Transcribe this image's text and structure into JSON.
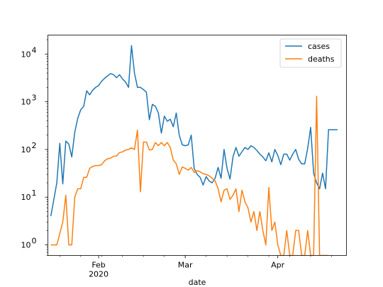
{
  "chart_data": {
    "type": "line",
    "title": "",
    "xlabel": "date",
    "ylabel": "",
    "yscale": "log",
    "ylim": [
      0.6,
      25000
    ],
    "xlim": [
      "2020-01-15",
      "2020-04-24"
    ],
    "grid": false,
    "legend": {
      "position": "top-right",
      "entries": [
        "cases",
        "deaths"
      ]
    },
    "x_ticks": [
      {
        "label": "Feb",
        "date": "2020-02-01",
        "sublabel": "2020"
      },
      {
        "label": "Mar",
        "date": "2020-03-01"
      },
      {
        "label": "Apr",
        "date": "2020-04-01"
      }
    ],
    "y_ticks": [
      {
        "base": "10",
        "exp": "0",
        "value": 1
      },
      {
        "base": "10",
        "exp": "1",
        "value": 10
      },
      {
        "base": "10",
        "exp": "2",
        "value": 100
      },
      {
        "base": "10",
        "exp": "3",
        "value": 1000
      },
      {
        "base": "10",
        "exp": "4",
        "value": 10000
      }
    ],
    "colors": {
      "cases": "#1f77b4",
      "deaths": "#ff7f0e",
      "axis": "#000000"
    },
    "series": [
      {
        "name": "cases",
        "x": [
          "2020-01-16",
          "2020-01-18",
          "2020-01-19",
          "2020-01-20",
          "2020-01-21",
          "2020-01-22",
          "2020-01-23",
          "2020-01-24",
          "2020-01-25",
          "2020-01-26",
          "2020-01-27",
          "2020-01-28",
          "2020-01-29",
          "2020-01-30",
          "2020-01-31",
          "2020-02-01",
          "2020-02-02",
          "2020-02-03",
          "2020-02-04",
          "2020-02-05",
          "2020-02-06",
          "2020-02-07",
          "2020-02-08",
          "2020-02-09",
          "2020-02-10",
          "2020-02-11",
          "2020-02-12",
          "2020-02-13",
          "2020-02-14",
          "2020-02-15",
          "2020-02-16",
          "2020-02-17",
          "2020-02-18",
          "2020-02-19",
          "2020-02-20",
          "2020-02-21",
          "2020-02-22",
          "2020-02-23",
          "2020-02-24",
          "2020-02-25",
          "2020-02-26",
          "2020-02-27",
          "2020-02-28",
          "2020-02-29",
          "2020-03-01",
          "2020-03-02",
          "2020-03-03",
          "2020-03-04",
          "2020-03-05",
          "2020-03-06",
          "2020-03-07",
          "2020-03-08",
          "2020-03-09",
          "2020-03-10",
          "2020-03-11",
          "2020-03-12",
          "2020-03-13",
          "2020-03-14",
          "2020-03-15",
          "2020-03-16",
          "2020-03-17",
          "2020-03-18",
          "2020-03-19",
          "2020-03-20",
          "2020-03-21",
          "2020-03-22",
          "2020-03-23",
          "2020-03-24",
          "2020-03-25",
          "2020-03-26",
          "2020-03-27",
          "2020-03-28",
          "2020-03-29",
          "2020-03-30",
          "2020-03-31",
          "2020-04-01",
          "2020-04-02",
          "2020-04-03",
          "2020-04-04",
          "2020-04-05",
          "2020-04-06",
          "2020-04-07",
          "2020-04-08",
          "2020-04-09",
          "2020-04-10",
          "2020-04-11",
          "2020-04-12",
          "2020-04-13",
          "2020-04-14",
          "2020-04-15",
          "2020-04-16",
          "2020-04-17",
          "2020-04-18",
          "2020-04-19",
          "2020-04-20",
          "2020-04-21"
        ],
        "y": [
          4,
          20,
          135,
          19,
          150,
          130,
          70,
          230,
          450,
          680,
          800,
          1700,
          1400,
          1750,
          2000,
          2200,
          2700,
          3100,
          3500,
          3900,
          3700,
          3200,
          3700,
          3000,
          2600,
          2000,
          15000,
          4000,
          2000,
          2000,
          1800,
          1600,
          420,
          880,
          800,
          580,
          220,
          500,
          390,
          430,
          300,
          580,
          200,
          125,
          120,
          125,
          200,
          40,
          30,
          26,
          18,
          27,
          22,
          20,
          25,
          42,
          25,
          100,
          40,
          24,
          70,
          110,
          72,
          90,
          110,
          100,
          120,
          110,
          95,
          80,
          70,
          58,
          85,
          55,
          100,
          75,
          48,
          80,
          80,
          60,
          80,
          100,
          62,
          50,
          50,
          105,
          290,
          32,
          20,
          15,
          32,
          15,
          260,
          260,
          260,
          260
        ],
        "y_note": "log-scale values"
      },
      {
        "name": "deaths",
        "x": [
          "2020-01-16",
          "2020-01-18",
          "2020-01-20",
          "2020-01-21",
          "2020-01-22",
          "2020-01-23",
          "2020-01-24",
          "2020-01-25",
          "2020-01-26",
          "2020-01-27",
          "2020-01-28",
          "2020-01-29",
          "2020-01-30",
          "2020-01-31",
          "2020-02-01",
          "2020-02-02",
          "2020-02-03",
          "2020-02-04",
          "2020-02-05",
          "2020-02-06",
          "2020-02-07",
          "2020-02-08",
          "2020-02-09",
          "2020-02-10",
          "2020-02-11",
          "2020-02-12",
          "2020-02-13",
          "2020-02-14",
          "2020-02-15",
          "2020-02-16",
          "2020-02-17",
          "2020-02-18",
          "2020-02-19",
          "2020-02-20",
          "2020-02-21",
          "2020-02-22",
          "2020-02-23",
          "2020-02-24",
          "2020-02-25",
          "2020-02-26",
          "2020-02-27",
          "2020-02-28",
          "2020-02-29",
          "2020-03-01",
          "2020-03-02",
          "2020-03-03",
          "2020-03-04",
          "2020-03-05",
          "2020-03-06",
          "2020-03-07",
          "2020-03-08",
          "2020-03-09",
          "2020-03-10",
          "2020-03-11",
          "2020-03-12",
          "2020-03-13",
          "2020-03-14",
          "2020-03-15",
          "2020-03-16",
          "2020-03-17",
          "2020-03-18",
          "2020-03-19",
          "2020-03-20",
          "2020-03-21",
          "2020-03-22",
          "2020-03-23",
          "2020-03-24",
          "2020-03-25",
          "2020-03-26",
          "2020-03-27",
          "2020-03-28",
          "2020-03-29",
          "2020-03-30",
          "2020-03-31",
          "2020-04-01",
          "2020-04-02",
          "2020-04-03",
          "2020-04-04",
          "2020-04-05",
          "2020-04-06",
          "2020-04-07",
          "2020-04-08",
          "2020-04-09",
          "2020-04-10",
          "2020-04-11",
          "2020-04-12",
          "2020-04-13",
          "2020-04-14",
          "2020-04-15",
          "2020-04-16",
          "2020-04-17",
          "2020-04-18"
        ],
        "y": [
          1,
          1,
          3,
          11,
          1,
          1,
          10,
          15,
          15,
          26,
          26,
          40,
          44,
          46,
          46,
          48,
          58,
          64,
          66,
          72,
          73,
          86,
          89,
          97,
          100,
          108,
          100,
          255,
          13,
          143,
          143,
          97,
          100,
          140,
          120,
          140,
          120,
          140,
          110,
          60,
          50,
          30,
          43,
          40,
          37,
          42,
          33,
          36,
          34,
          31,
          30,
          28,
          25,
          22,
          15,
          8,
          14,
          15,
          9,
          11,
          15,
          5,
          14,
          8,
          6,
          3,
          5,
          2,
          5,
          2,
          1,
          16,
          2,
          3,
          1,
          0.6,
          0.6,
          2,
          0.6,
          0.6,
          2,
          2,
          0.6,
          0.6,
          2,
          0.6,
          0.6,
          1300,
          0.6,
          0.6,
          0.6,
          0.6
        ],
        "y_note": "log-scale values"
      }
    ]
  }
}
